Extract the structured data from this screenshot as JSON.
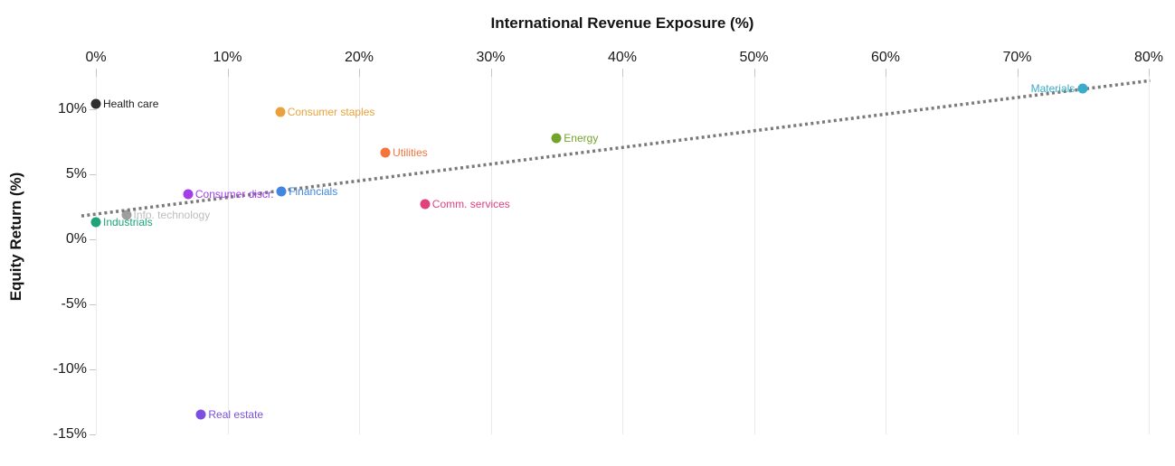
{
  "chart": {
    "title": "International Revenue Exposure (%)",
    "ylabel": "Equity Return (%)",
    "x_ticks": [
      "0%",
      "10%",
      "20%",
      "30%",
      "40%",
      "50%",
      "60%",
      "70%",
      "80%"
    ],
    "y_ticks": [
      "10%",
      "5%",
      "0%",
      "-5%",
      "-10%",
      "-15%"
    ]
  },
  "chart_data": {
    "type": "scatter",
    "title": "International Revenue Exposure (%)",
    "xlabel": "International Revenue Exposure (%)",
    "ylabel": "Equity Return (%)",
    "x_axis_position": "top",
    "xlim": [
      0,
      80
    ],
    "ylim": [
      -15.3,
      12.5
    ],
    "x_tick_values": [
      0,
      10,
      20,
      30,
      40,
      50,
      60,
      70,
      80
    ],
    "y_tick_values": [
      10,
      5,
      0,
      -5,
      -10,
      -15
    ],
    "grid": "vertical-only",
    "legend": "none",
    "points": [
      {
        "label": "Health care",
        "x": 0,
        "y": 10.4,
        "color": "#2e2e2e",
        "label_color": "#1a1a1a",
        "label_side": "right"
      },
      {
        "label": "Consumer staples",
        "x": 14,
        "y": 9.8,
        "color": "#e9a23b",
        "label_side": "right"
      },
      {
        "label": "Utilities",
        "x": 22,
        "y": 6.7,
        "color": "#f4743b",
        "label_side": "right"
      },
      {
        "label": "Energy",
        "x": 35,
        "y": 7.8,
        "color": "#74a32c",
        "label_side": "right"
      },
      {
        "label": "Materials",
        "x": 75,
        "y": 11.6,
        "color": "#3aabc8",
        "label_side": "left"
      },
      {
        "label": "Consumer discr.",
        "x": 7,
        "y": 3.5,
        "color": "#a23de8",
        "label_side": "right"
      },
      {
        "label": "Financials",
        "x": 14.1,
        "y": 3.7,
        "color": "#4186e0",
        "label_side": "right"
      },
      {
        "label": "Comm. services",
        "x": 25,
        "y": 2.7,
        "color": "#e0427e",
        "label_side": "right"
      },
      {
        "label": "Industrials",
        "x": 0,
        "y": 1.3,
        "color": "#1fa37b",
        "label_side": "right"
      },
      {
        "label": "Info. technology",
        "x": 2.3,
        "y": 1.9,
        "color": "#9e9e9e",
        "label_color": "#bdbdbd",
        "label_side": "right",
        "dimmed": true
      },
      {
        "label": "Real estate",
        "x": 8,
        "y": -13.5,
        "color": "#7c4fe0",
        "label_side": "right"
      }
    ],
    "trendline": {
      "style": "dotted",
      "color": "#7a7a7a",
      "x1": -1.1,
      "y1": 1.8,
      "x2": 80.1,
      "y2": 12.2
    }
  }
}
